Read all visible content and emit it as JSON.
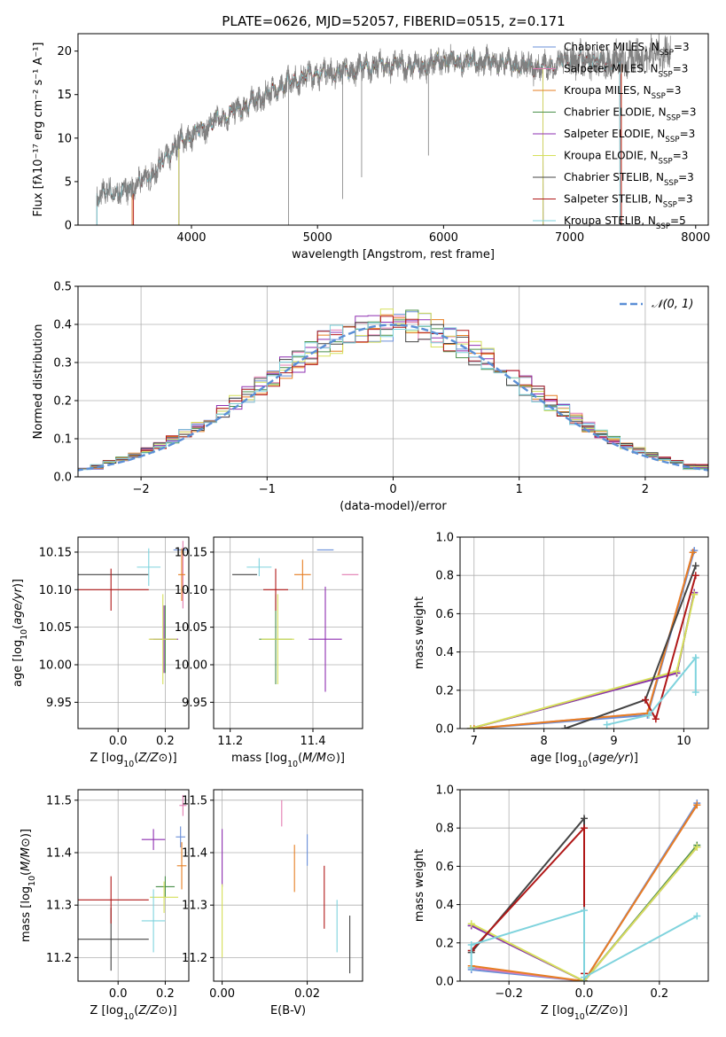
{
  "title": "PLATE=0626, MJD=52057, FIBERID=0515, z=0.171",
  "palette": {
    "Chabrier MILES": "#6a8fd8",
    "Salpeter MILES": "#e27bb1",
    "Kroupa MILES": "#e67e22",
    "Chabrier ELODIE": "#4a8f4a",
    "Salpeter ELODIE": "#8e2fb0",
    "Kroupa ELODIE": "#d6e05a",
    "Chabrier STELIB": "#444444",
    "Salpeter STELIB": "#b01818",
    "Kroupa STELIB": "#7fd3dd",
    "data": "#808080",
    "gauss": "#5b8fd6"
  },
  "chart_data": [
    {
      "id": "spectrum",
      "type": "line",
      "title": "PLATE=0626, MJD=52057, FIBERID=0515, z=0.171",
      "xlabel": "wavelength [Angstrom, rest frame]",
      "ylabel": "Flux [fλ10⁻¹⁷ erg cm⁻² s⁻¹ A⁻¹]",
      "xlim": [
        3100,
        8100
      ],
      "ylim": [
        0,
        22
      ],
      "xticks": [
        4000,
        5000,
        6000,
        7000,
        8000
      ],
      "yticks": [
        0,
        5,
        10,
        15,
        20
      ],
      "legend_position": "right",
      "legend": [
        {
          "label": "Chabrier MILES, N",
          "sub": "SSP",
          "tail": "=3"
        },
        {
          "label": "Salpeter MILES, N",
          "sub": "SSP",
          "tail": "=3"
        },
        {
          "label": "Kroupa MILES, N",
          "sub": "SSP",
          "tail": "=3"
        },
        {
          "label": "Chabrier ELODIE, N",
          "sub": "SSP",
          "tail": "=3"
        },
        {
          "label": "Salpeter ELODIE, N",
          "sub": "SSP",
          "tail": "=3"
        },
        {
          "label": "Kroupa ELODIE, N",
          "sub": "SSP",
          "tail": "=3"
        },
        {
          "label": "Chabrier STELIB, N",
          "sub": "SSP",
          "tail": "=3"
        },
        {
          "label": "Salpeter STELIB, N",
          "sub": "SSP",
          "tail": "=3"
        },
        {
          "label": "Kroupa STELIB, N",
          "sub": "SSP",
          "tail": "=5"
        }
      ],
      "continuum_knots": [
        [
          3250,
          3.5
        ],
        [
          3500,
          4.0
        ],
        [
          3700,
          6.0
        ],
        [
          3900,
          9.5
        ],
        [
          4000,
          10.3
        ],
        [
          4200,
          12.0
        ],
        [
          4400,
          13.5
        ],
        [
          4600,
          15.0
        ],
        [
          4800,
          16.6
        ],
        [
          5000,
          17.5
        ],
        [
          5200,
          17.6
        ],
        [
          5400,
          18.2
        ],
        [
          5600,
          18.4
        ],
        [
          5800,
          18.2
        ],
        [
          6000,
          18.9
        ],
        [
          6200,
          18.8
        ],
        [
          6400,
          18.7
        ],
        [
          6600,
          18.3
        ],
        [
          6800,
          18.1
        ],
        [
          7000,
          19.0
        ],
        [
          7200,
          18.8
        ],
        [
          7400,
          18.8
        ],
        [
          7600,
          19.5
        ],
        [
          7800,
          20.0
        ]
      ],
      "model_ranges": {
        "Chabrier MILES": [
          3530,
          7410
        ],
        "Salpeter MILES": [
          3530,
          7410
        ],
        "Kroupa MILES": [
          3530,
          7410
        ],
        "Chabrier ELODIE": [
          3900,
          6790
        ],
        "Salpeter ELODIE": [
          3900,
          6790
        ],
        "Kroupa ELODIE": [
          3900,
          6790
        ],
        "Chabrier STELIB": [
          3250,
          7400
        ],
        "Salpeter STELIB": [
          3540,
          7410
        ],
        "Kroupa STELIB": [
          3250,
          7400
        ]
      },
      "data_range": [
        3250,
        7800
      ],
      "spikes": [
        {
          "x": 4770,
          "y": 0
        },
        {
          "x": 5200,
          "y": 3.0
        },
        {
          "x": 5350,
          "y": 5.5
        },
        {
          "x": 5880,
          "y": 8.0
        }
      ]
    },
    {
      "id": "residuals",
      "type": "bar",
      "xlabel": "(data-model)/error",
      "ylabel": "Normed distribution",
      "xlim": [
        -2.5,
        2.5
      ],
      "ylim": [
        0,
        0.5
      ],
      "xticks": [
        -2,
        -1,
        0,
        1,
        2
      ],
      "xticklabels": [
        "−2",
        "−1",
        "0",
        "1",
        "2"
      ],
      "yticks": [
        0,
        0.1,
        0.2,
        0.3,
        0.4,
        0.5
      ],
      "yticklabels": [
        "0.0",
        "0.1",
        "0.2",
        "0.3",
        "0.4",
        "0.5"
      ],
      "bin_width": 0.1,
      "legend": "𝒩(0, 1)",
      "legend_position": "upper right",
      "series": [
        "Chabrier MILES",
        "Salpeter MILES",
        "Kroupa MILES",
        "Chabrier ELODIE",
        "Salpeter ELODIE",
        "Kroupa ELODIE",
        "Chabrier STELIB",
        "Salpeter STELIB",
        "Kroupa STELIB"
      ]
    },
    {
      "id": "age-vs-Z",
      "type": "scatter",
      "xlabel": "Z [log₁₀(Z/Z⊙)]",
      "ylabel": "age  [log₁₀(age/yr)]",
      "xlim": [
        -0.17,
        0.3
      ],
      "ylim": [
        9.915,
        10.17
      ],
      "xticks": [
        0.0,
        0.2
      ],
      "xticklabels": [
        "0.0",
        "0.2"
      ],
      "yticks": [
        9.95,
        10.0,
        10.05,
        10.1,
        10.15
      ],
      "yticklabels": [
        "9.95",
        "10.00",
        "10.05",
        "10.10",
        "10.15"
      ],
      "points": [
        {
          "series": "Chabrier MILES",
          "x": 0.265,
          "xerr": 0.03,
          "y": 10.153,
          "yerr": 0.0
        },
        {
          "series": "Salpeter MILES",
          "x": 0.275,
          "xerr": 0.0,
          "y": 10.12,
          "yerr": 0.045
        },
        {
          "series": "Kroupa MILES",
          "x": 0.27,
          "xerr": 0.015,
          "y": 10.12,
          "yerr": 0.035
        },
        {
          "series": "Chabrier ELODIE",
          "x": 0.2,
          "xerr": 0.05,
          "y": 10.034,
          "yerr": 0.045
        },
        {
          "series": "Salpeter ELODIE",
          "x": 0.195,
          "xerr": 0.06,
          "y": 10.034,
          "yerr": 0.045
        },
        {
          "series": "Kroupa ELODIE",
          "x": 0.19,
          "xerr": 0.06,
          "y": 10.034,
          "yerr": 0.06
        },
        {
          "series": "Chabrier STELIB",
          "x": -0.03,
          "xerr": 0.16,
          "y": 10.12,
          "yerr": 0.0
        },
        {
          "series": "Salpeter STELIB",
          "x": -0.03,
          "xerr": 0.16,
          "y": 10.1,
          "yerr": 0.028
        },
        {
          "series": "Kroupa STELIB",
          "x": 0.13,
          "xerr": 0.05,
          "y": 10.13,
          "yerr": 0.025
        }
      ]
    },
    {
      "id": "age-vs-mass",
      "type": "scatter",
      "xlabel": "mass [log₁₀(M/M⊙)]",
      "ylabel": "",
      "xlim": [
        11.16,
        11.52
      ],
      "ylim": [
        9.915,
        10.17
      ],
      "xticks": [
        11.2,
        11.4
      ],
      "xticklabels": [
        "11.2",
        "11.4"
      ],
      "yticks": [
        9.95,
        10.0,
        10.05,
        10.1,
        10.15
      ],
      "yticklabels": [
        "9.95",
        "10.00",
        "10.05",
        "10.10",
        "10.15"
      ],
      "points": [
        {
          "series": "Chabrier MILES",
          "x": 11.43,
          "xerr": 0.02,
          "y": 10.153,
          "yerr": 0.0
        },
        {
          "series": "Salpeter MILES",
          "x": 11.49,
          "xerr": 0.02,
          "y": 10.12,
          "yerr": 0.0
        },
        {
          "series": "Kroupa MILES",
          "x": 11.375,
          "xerr": 0.02,
          "y": 10.12,
          "yerr": 0.02
        },
        {
          "series": "Chabrier ELODIE",
          "x": 11.31,
          "xerr": 0.04,
          "y": 10.034,
          "yerr": 0.06
        },
        {
          "series": "Salpeter ELODIE",
          "x": 11.43,
          "xerr": 0.04,
          "y": 10.034,
          "yerr": 0.07
        },
        {
          "series": "Kroupa ELODIE",
          "x": 11.315,
          "xerr": 0.04,
          "y": 10.034,
          "yerr": 0.06
        },
        {
          "series": "Chabrier STELIB",
          "x": 11.235,
          "xerr": 0.03,
          "y": 10.12,
          "yerr": 0.0
        },
        {
          "series": "Salpeter STELIB",
          "x": 11.31,
          "xerr": 0.03,
          "y": 10.1,
          "yerr": 0.028
        },
        {
          "series": "Kroupa STELIB",
          "x": 11.27,
          "xerr": 0.03,
          "y": 10.13,
          "yerr": 0.012
        }
      ]
    },
    {
      "id": "weight-vs-age",
      "type": "line",
      "xlabel": "age  [log₁₀(age/yr)]",
      "ylabel": "mass weight",
      "xlim": [
        6.8,
        10.35
      ],
      "ylim": [
        0,
        1.0
      ],
      "xticks": [
        7,
        8,
        9,
        10
      ],
      "yticks": [
        0,
        0.2,
        0.4,
        0.6,
        0.8,
        1.0
      ],
      "yticklabels": [
        "0.0",
        "0.2",
        "0.4",
        "0.6",
        "0.8",
        "1.0"
      ],
      "series": [
        {
          "name": "Chabrier MILES",
          "points": [
            [
              7.0,
              0.0
            ],
            [
              9.48,
              0.07
            ],
            [
              10.15,
              0.93
            ]
          ]
        },
        {
          "name": "Salpeter MILES",
          "points": [
            [
              7.0,
              0.0
            ],
            [
              9.48,
              0.08
            ],
            [
              10.13,
              0.92
            ]
          ]
        },
        {
          "name": "Kroupa MILES",
          "points": [
            [
              7.0,
              0.0
            ],
            [
              9.48,
              0.08
            ],
            [
              10.13,
              0.92
            ]
          ]
        },
        {
          "name": "Chabrier ELODIE",
          "points": [
            [
              6.95,
              0.0
            ],
            [
              9.9,
              0.29
            ],
            [
              10.15,
              0.71
            ]
          ]
        },
        {
          "name": "Salpeter ELODIE",
          "points": [
            [
              6.95,
              0.0
            ],
            [
              9.9,
              0.29
            ],
            [
              10.15,
              0.71
            ]
          ]
        },
        {
          "name": "Kroupa ELODIE",
          "points": [
            [
              6.95,
              0.0
            ],
            [
              9.9,
              0.3
            ],
            [
              10.15,
              0.7
            ]
          ]
        },
        {
          "name": "Chabrier STELIB",
          "points": [
            [
              8.3,
              0.0
            ],
            [
              9.45,
              0.15
            ],
            [
              10.17,
              0.85
            ]
          ]
        },
        {
          "name": "Salpeter STELIB",
          "points": [
            [
              9.45,
              0.15
            ],
            [
              9.6,
              0.05
            ],
            [
              10.17,
              0.8
            ]
          ]
        },
        {
          "name": "Kroupa STELIB",
          "points": [
            [
              8.9,
              0.02
            ],
            [
              9.5,
              0.07
            ],
            [
              10.17,
              0.37
            ],
            [
              10.17,
              0.19
            ]
          ]
        }
      ]
    },
    {
      "id": "mass-vs-Z",
      "type": "scatter",
      "xlabel": "Z [log₁₀(Z/Z⊙)]",
      "ylabel": "mass [log₁₀(M/M⊙)]",
      "xlim": [
        -0.17,
        0.3
      ],
      "ylim": [
        11.155,
        11.52
      ],
      "xticks": [
        0.0,
        0.2
      ],
      "xticklabels": [
        "0.0",
        "0.2"
      ],
      "yticks": [
        11.2,
        11.3,
        11.4,
        11.5
      ],
      "yticklabels": [
        "11.2",
        "11.3",
        "11.4",
        "11.5"
      ],
      "points": [
        {
          "series": "Chabrier MILES",
          "x": 0.265,
          "xerr": 0.02,
          "y": 11.43,
          "yerr": 0.02
        },
        {
          "series": "Salpeter MILES",
          "x": 0.275,
          "xerr": 0.015,
          "y": 11.49,
          "yerr": 0.02
        },
        {
          "series": "Kroupa MILES",
          "x": 0.27,
          "xerr": 0.02,
          "y": 11.375,
          "yerr": 0.045
        },
        {
          "series": "Chabrier ELODIE",
          "x": 0.2,
          "xerr": 0.04,
          "y": 11.335,
          "yerr": 0.02
        },
        {
          "series": "Salpeter ELODIE",
          "x": 0.15,
          "xerr": 0.05,
          "y": 11.425,
          "yerr": 0.02
        },
        {
          "series": "Kroupa ELODIE",
          "x": 0.195,
          "xerr": 0.06,
          "y": 11.315,
          "yerr": 0.03
        },
        {
          "series": "Chabrier STELIB",
          "x": -0.03,
          "xerr": 0.16,
          "y": 11.235,
          "yerr": 0.06
        },
        {
          "series": "Salpeter STELIB",
          "x": -0.03,
          "xerr": 0.16,
          "y": 11.31,
          "yerr": 0.045
        },
        {
          "series": "Kroupa STELIB",
          "x": 0.15,
          "xerr": 0.05,
          "y": 11.27,
          "yerr": 0.06
        }
      ]
    },
    {
      "id": "mass-vs-EBV",
      "type": "scatter",
      "xlabel": "E(B-V)",
      "ylabel": "",
      "xlim": [
        -0.002,
        0.033
      ],
      "ylim": [
        11.155,
        11.52
      ],
      "xticks": [
        0.0,
        0.02
      ],
      "xticklabels": [
        "0.00",
        "0.02"
      ],
      "yticks": [
        11.2,
        11.3,
        11.4,
        11.5
      ],
      "yticklabels": [
        "11.2",
        "11.3",
        "11.4",
        "11.5"
      ],
      "points": [
        {
          "series": "Chabrier MILES",
          "x": 0.02,
          "xerr": 0.0,
          "y": 11.405,
          "yerr": 0.03
        },
        {
          "series": "Salpeter MILES",
          "x": 0.014,
          "xerr": 0.0,
          "y": 11.475,
          "yerr": 0.025
        },
        {
          "series": "Kroupa MILES",
          "x": 0.017,
          "xerr": 0.0,
          "y": 11.37,
          "yerr": 0.045
        },
        {
          "series": "Salpeter ELODIE",
          "x": 0.0,
          "xerr": 0.0,
          "y": 11.39,
          "yerr": 0.055
        },
        {
          "series": "Kroupa ELODIE",
          "x": 0.0,
          "xerr": 0.0,
          "y": 11.27,
          "yerr": 0.07
        },
        {
          "series": "Chabrier STELIB",
          "x": 0.03,
          "xerr": 0.0,
          "y": 11.225,
          "yerr": 0.055
        },
        {
          "series": "Salpeter STELIB",
          "x": 0.024,
          "xerr": 0.0,
          "y": 11.315,
          "yerr": 0.06
        },
        {
          "series": "Kroupa STELIB",
          "x": 0.027,
          "xerr": 0.0,
          "y": 11.26,
          "yerr": 0.05
        }
      ]
    },
    {
      "id": "weight-vs-Z",
      "type": "line",
      "xlabel": "Z [log₁₀(Z/Z⊙)]",
      "ylabel": "mass weight",
      "xlim": [
        -0.33,
        0.33
      ],
      "ylim": [
        0,
        1.0
      ],
      "xticks": [
        -0.2,
        0.0,
        0.2
      ],
      "xticklabels": [
        "−0.2",
        "0.0",
        "0.2"
      ],
      "yticks": [
        0,
        0.2,
        0.4,
        0.6,
        0.8,
        1.0
      ],
      "yticklabels": [
        "0.0",
        "0.2",
        "0.4",
        "0.6",
        "0.8",
        "1.0"
      ],
      "series": [
        {
          "name": "Chabrier MILES",
          "points": [
            [
              -0.3,
              0.06
            ],
            [
              0.0,
              0.0
            ],
            [
              0.3,
              0.93
            ]
          ]
        },
        {
          "name": "Salpeter MILES",
          "points": [
            [
              -0.3,
              0.07
            ],
            [
              0.0,
              0.0
            ],
            [
              0.3,
              0.92
            ]
          ]
        },
        {
          "name": "Kroupa MILES",
          "points": [
            [
              -0.3,
              0.08
            ],
            [
              0.0,
              0.0
            ],
            [
              0.3,
              0.92
            ]
          ]
        },
        {
          "name": "Chabrier ELODIE",
          "points": [
            [
              -0.3,
              0.29
            ],
            [
              0.0,
              0.0
            ],
            [
              0.3,
              0.71
            ]
          ]
        },
        {
          "name": "Salpeter ELODIE",
          "points": [
            [
              -0.3,
              0.29
            ],
            [
              0.0,
              0.0
            ],
            [
              0.3,
              0.7
            ]
          ]
        },
        {
          "name": "Kroupa ELODIE",
          "points": [
            [
              -0.3,
              0.3
            ],
            [
              0.0,
              0.0
            ],
            [
              0.3,
              0.7
            ]
          ]
        },
        {
          "name": "Chabrier STELIB",
          "points": [
            [
              -0.3,
              0.15
            ],
            [
              0.0,
              0.85
            ],
            [
              0.0,
              0.0
            ]
          ]
        },
        {
          "name": "Salpeter STELIB",
          "points": [
            [
              -0.3,
              0.16
            ],
            [
              0.0,
              0.8
            ],
            [
              0.0,
              0.04
            ]
          ]
        },
        {
          "name": "Kroupa STELIB",
          "points": [
            [
              -0.3,
              0.07
            ],
            [
              -0.3,
              0.19
            ],
            [
              0.0,
              0.37
            ],
            [
              0.0,
              0.02
            ],
            [
              0.3,
              0.34
            ]
          ]
        }
      ]
    }
  ]
}
